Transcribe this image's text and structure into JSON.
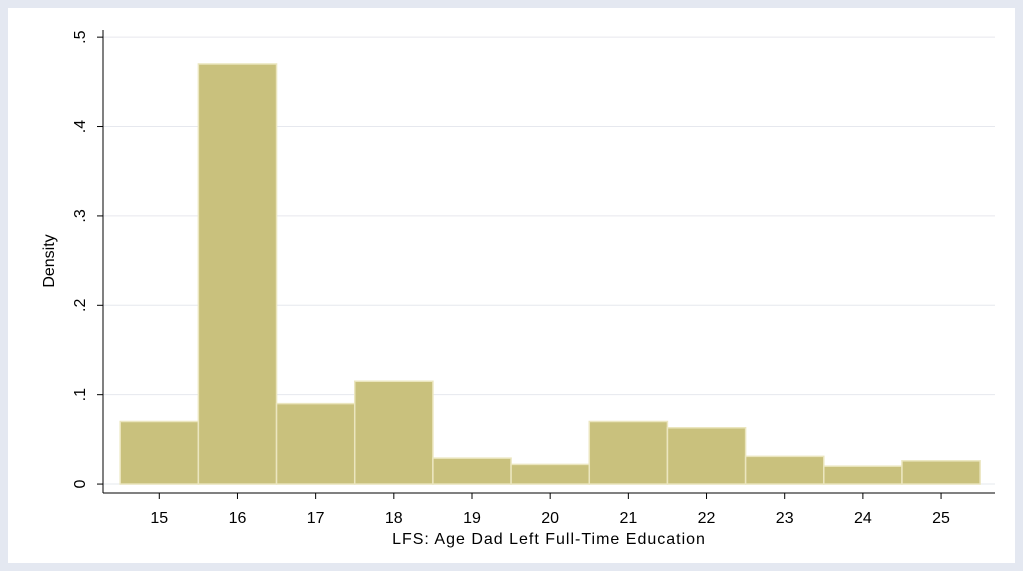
{
  "chart_data": {
    "type": "histogram",
    "xlabel": "LFS: Age Dad Left Full-Time Education",
    "ylabel": "Density",
    "bins": [
      14.5,
      15.5,
      16.5,
      17.5,
      18.5,
      19.5,
      20.5,
      21.5,
      22.5,
      23.5,
      24.5,
      25.5
    ],
    "values": [
      0.07,
      0.47,
      0.09,
      0.115,
      0.029,
      0.022,
      0.07,
      0.063,
      0.031,
      0.02,
      0.026
    ],
    "color": "#c9c17d",
    "xlim": [
      14.28,
      25.69
    ],
    "ylim": [
      -0.01,
      0.508
    ],
    "xticks": [
      15,
      16,
      17,
      18,
      19,
      20,
      21,
      22,
      23,
      24,
      25
    ],
    "yticks": [
      0,
      {
        "value": 0.1,
        "label": ".1"
      },
      {
        "value": 0.2,
        "label": ".2"
      },
      {
        "value": 0.3,
        "label": ".3"
      },
      {
        "value": 0.4,
        "label": ".4"
      },
      {
        "value": 0.5,
        "label": ".5"
      }
    ],
    "grid": true
  }
}
